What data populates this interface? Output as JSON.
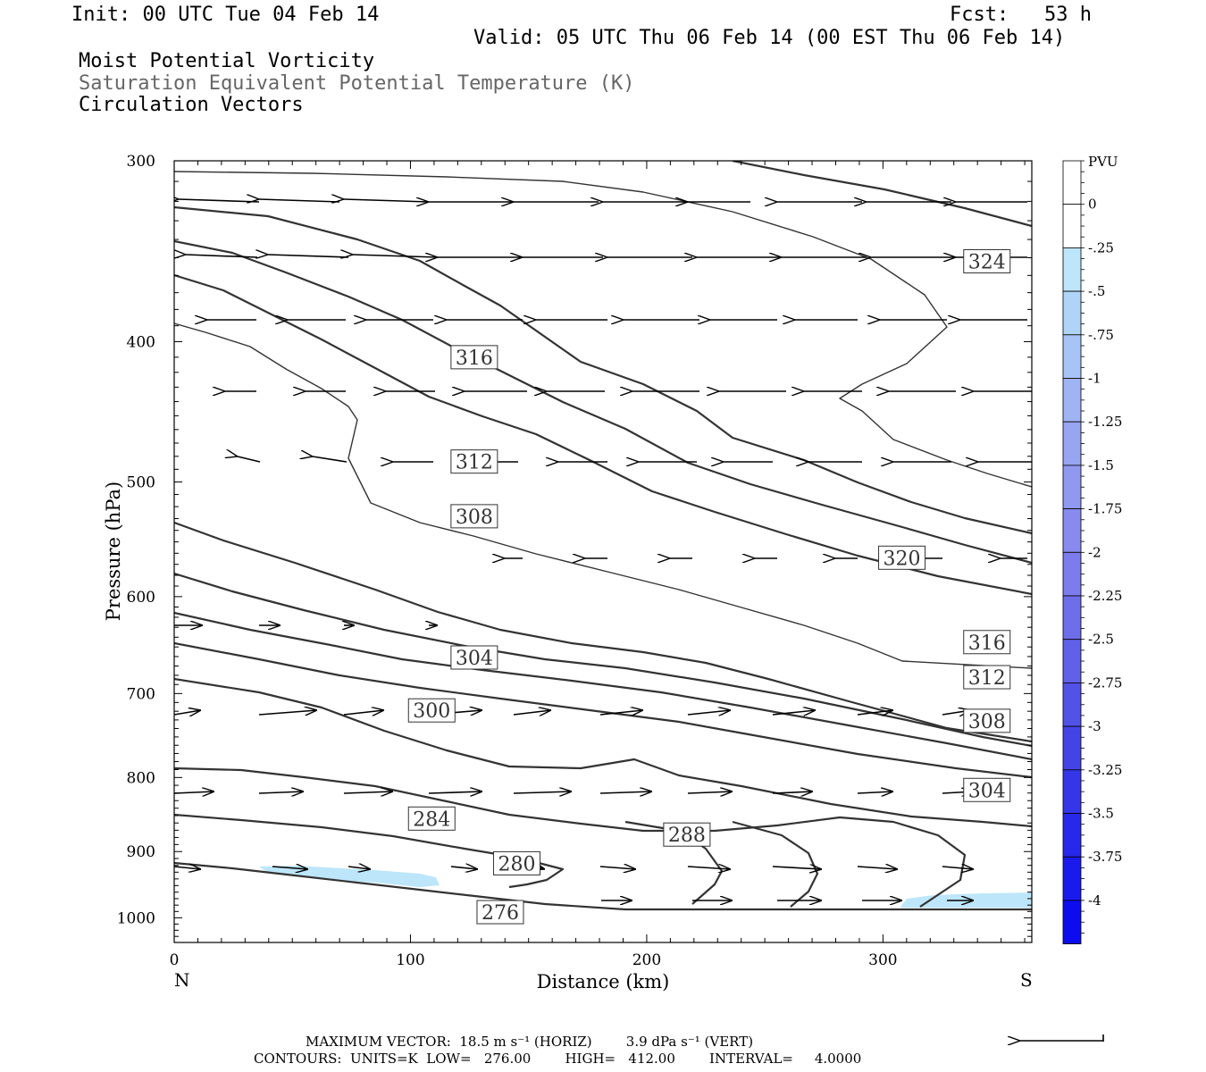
{
  "header": {
    "init": "Init: 00 UTC Tue 04 Feb 14",
    "fcst": "Fcst:   53 h",
    "valid": "Valid: 05 UTC Thu 06 Feb 14 (00 EST Thu 06 Feb 14)",
    "field1": "Moist Potential Vorticity",
    "field2": "Saturation Equivalent Potential Temperature (K)",
    "field3": "Circulation Vectors"
  },
  "colors": {
    "contour": "#333333",
    "vector": "#000000",
    "mpv_shade": "#bde6fa"
  },
  "chart_data": {
    "type": "cross-section",
    "xlabel": "Distance (km)",
    "ylabel": "Pressure (hPa)",
    "xlim": [
      0,
      363
    ],
    "ylim": [
      1040,
      300
    ],
    "y_scale": "log",
    "x_ticks": [
      0,
      100,
      200,
      300
    ],
    "y_ticks": [
      300,
      400,
      500,
      600,
      700,
      800,
      900,
      1000
    ],
    "x_end_labels": {
      "left": "N",
      "right": "S"
    },
    "colorbar": {
      "units": "PVU",
      "levels": [
        "0",
        "-.25",
        "-.5",
        "-.75",
        "-1",
        "-1.25",
        "-1.5",
        "-1.75",
        "-2",
        "-2.25",
        "-2.5",
        "-2.75",
        "-3",
        "-3.25",
        "-3.5",
        "-3.75",
        "-4"
      ],
      "colors": [
        "#ffffff",
        "#bde6fa",
        "#b0d4f8",
        "#a8c4f6",
        "#a0b4f4",
        "#98a6f2",
        "#9098f0",
        "#888aee",
        "#7c7cec",
        "#6e6eea",
        "#6060e8",
        "#5252e6",
        "#4444e6",
        "#3636e8",
        "#2828ea",
        "#1a1aec",
        "#0c0cee"
      ]
    },
    "contour_labels": [
      {
        "text": "324",
        "x": 344,
        "y": 352
      },
      {
        "text": "316",
        "x": 127,
        "y": 410
      },
      {
        "text": "312",
        "x": 127,
        "y": 484
      },
      {
        "text": "308",
        "x": 127,
        "y": 528
      },
      {
        "text": "320",
        "x": 308,
        "y": 564
      },
      {
        "text": "316",
        "x": 344,
        "y": 645
      },
      {
        "text": "312",
        "x": 344,
        "y": 682
      },
      {
        "text": "304",
        "x": 127,
        "y": 661
      },
      {
        "text": "300",
        "x": 109,
        "y": 719
      },
      {
        "text": "308",
        "x": 344,
        "y": 731
      },
      {
        "text": "304",
        "x": 344,
        "y": 816
      },
      {
        "text": "284",
        "x": 109,
        "y": 854
      },
      {
        "text": "288",
        "x": 217,
        "y": 876
      },
      {
        "text": "280",
        "x": 145,
        "y": 917
      },
      {
        "text": "276",
        "x": 138,
        "y": 991
      }
    ],
    "footer_vector": "MAXIMUM VECTOR:  18.5 m s⁻¹ (HORIZ)        3.9 dPa s⁻¹ (VERT)",
    "footer_contours": "CONTOURS:  UNITS=K  LOW=   276.00        HIGH=   412.00        INTERVAL=     4.0000"
  }
}
